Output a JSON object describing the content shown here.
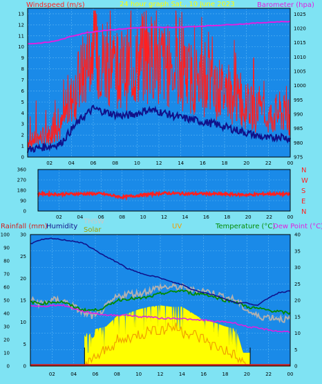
{
  "panel1": {
    "title": "24 hour graph Sat., 10 June 2023",
    "left_label": "Windspeed (m/s)",
    "right_label": "Barometer (hpa)",
    "left_ticks": [
      "0",
      "1",
      "2",
      "3",
      "4",
      "5",
      "6",
      "7",
      "8",
      "9",
      "10",
      "11",
      "12",
      "13"
    ],
    "right_ticks": [
      "975",
      "980",
      "985",
      "990",
      "995",
      "1000",
      "1005",
      "1010",
      "1015",
      "1020",
      "1025"
    ],
    "x_ticks": [
      "02",
      "04",
      "06",
      "08",
      "10",
      "12",
      "14",
      "16",
      "18",
      "20",
      "22",
      "00"
    ]
  },
  "panel2": {
    "left_ticks": [
      "0",
      "90",
      "180",
      "270",
      "360"
    ],
    "right_ticks": [
      "N",
      "W",
      "S",
      "E",
      "N"
    ],
    "x_ticks": [
      "02",
      "04",
      "06",
      "08",
      "10",
      "12",
      "14",
      "16",
      "18",
      "20",
      "22",
      "00"
    ]
  },
  "panel3": {
    "labels": {
      "rainfall": "Rainfall (mm)",
      "humidity": "Humidity",
      "thsw": "THSW",
      "solar": "Solar",
      "uv": "UV",
      "temperature": "Temperature (°C)",
      "dewpoint": "Dew Point (°C)"
    },
    "left_ticks": [
      "0",
      "10",
      "20",
      "30",
      "40",
      "50",
      "60",
      "70",
      "80",
      "90",
      "100"
    ],
    "second_ticks": [
      "0",
      "5",
      "10",
      "15",
      "20",
      "25",
      "30"
    ],
    "right_ticks": [
      "0",
      "5",
      "10",
      "15",
      "20",
      "25",
      "30",
      "35",
      "40"
    ],
    "x_ticks": [
      "02",
      "04",
      "06",
      "08",
      "10",
      "12",
      "14",
      "16",
      "18",
      "20",
      "22",
      "00"
    ]
  },
  "colors": {
    "background": "#7fe3f3",
    "plot_bg": "#1a8ae8",
    "wind_gust": "#ff2020",
    "wind_avg": "#10128a",
    "barometer": "#e020e0",
    "direction": "#ff2020",
    "humidity": "#10128a",
    "temperature": "#008a00",
    "dewpoint": "#e020e0",
    "thsw": "#b0b0b0",
    "solar": "#ffff00",
    "uv": "#f0a000",
    "rain": "#d02020"
  },
  "chart_data": [
    {
      "type": "line",
      "title": "24 hour graph Sat., 10 June 2023",
      "x": [
        "00:00",
        "01:00",
        "02:00",
        "03:00",
        "04:00",
        "05:00",
        "06:00",
        "07:00",
        "08:00",
        "09:00",
        "10:00",
        "11:00",
        "12:00",
        "13:00",
        "14:00",
        "15:00",
        "16:00",
        "17:00",
        "18:00",
        "19:00",
        "20:00",
        "21:00",
        "22:00",
        "23:00",
        "00:00"
      ],
      "series": [
        {
          "name": "Windspeed (m/s)",
          "axis": "left",
          "values": [
            1.2,
            1.5,
            1.8,
            2.2,
            4.5,
            6.5,
            8.0,
            7.5,
            7.0,
            6.8,
            7.2,
            7.8,
            7.5,
            7.0,
            6.5,
            6.2,
            5.8,
            5.5,
            5.0,
            4.5,
            4.0,
            3.5,
            3.0,
            3.5,
            3.0
          ]
        },
        {
          "name": "Barometer (hpa)",
          "axis": "right",
          "values": [
            1014.6,
            1014.8,
            1015.2,
            1016.0,
            1017.2,
            1018.2,
            1018.8,
            1019.3,
            1019.6,
            1019.9,
            1020.2,
            1020.3,
            1020.3,
            1020.3,
            1020.4,
            1020.6,
            1020.8,
            1021.0,
            1021.2,
            1021.4,
            1021.6,
            1021.9,
            1022.1,
            1022.3,
            1022.4
          ]
        }
      ],
      "ylabel": "Windspeed (m/s)",
      "y2label": "Barometer (hpa)",
      "ylim": [
        0,
        13.5
      ],
      "y2lim": [
        975,
        1027
      ],
      "grid": true
    },
    {
      "type": "line",
      "x": [
        "00:00",
        "02:00",
        "04:00",
        "06:00",
        "08:00",
        "10:00",
        "12:00",
        "14:00",
        "16:00",
        "18:00",
        "20:00",
        "22:00",
        "00:00"
      ],
      "series": [
        {
          "values": [
            150,
            145,
            150,
            150,
            120,
            140,
            155,
            150,
            150,
            145,
            140,
            150,
            145
          ]
        }
      ],
      "ylim": [
        0,
        360
      ],
      "yticks": [
        "0",
        "90",
        "180",
        "270",
        "360"
      ],
      "y2ticks": [
        "N",
        "W",
        "S",
        "E",
        "N"
      ],
      "grid": true
    },
    {
      "type": "area",
      "x": [
        "00:00",
        "01:00",
        "02:00",
        "03:00",
        "04:00",
        "05:00",
        "06:00",
        "07:00",
        "08:00",
        "09:00",
        "10:00",
        "11:00",
        "12:00",
        "13:00",
        "14:00",
        "15:00",
        "16:00",
        "17:00",
        "18:00",
        "19:00",
        "20:00",
        "21:00",
        "22:00",
        "23:00",
        "00:00"
      ],
      "series": [
        {
          "name": "Humidity",
          "axis": "left",
          "values": [
            93,
            96,
            97,
            96,
            95,
            93,
            88,
            83,
            79,
            74,
            71,
            69,
            67,
            64,
            62,
            58,
            56,
            54,
            51,
            48,
            48,
            46,
            52,
            56,
            57
          ]
        },
        {
          "name": "Temperature (°C)",
          "axis": "right",
          "values": [
            19.5,
            19,
            19.5,
            19.5,
            18,
            17,
            17,
            18,
            20,
            20.5,
            20.5,
            21,
            22,
            22.5,
            23,
            22,
            22,
            21,
            20,
            19.5,
            18,
            17.5,
            17,
            16.5,
            16
          ]
        },
        {
          "name": "Dew Point (°C)",
          "axis": "right",
          "values": [
            18.5,
            18,
            18.5,
            18.5,
            17.5,
            16.5,
            16,
            15.5,
            15.5,
            15.5,
            15,
            15,
            14.5,
            14.5,
            14.5,
            14,
            14,
            13.5,
            13.5,
            13,
            12,
            11.5,
            11,
            10.5,
            10.5
          ]
        },
        {
          "name": "THSW",
          "axis": "right",
          "values": [
            20,
            19,
            20,
            20,
            18,
            16,
            15,
            18,
            21,
            22,
            22,
            23,
            24,
            24,
            24,
            23,
            23,
            22,
            21,
            20,
            17,
            15,
            15,
            14.5,
            14
          ]
        },
        {
          "name": "Solar",
          "axis": "left",
          "values": [
            0,
            0,
            0,
            0,
            0,
            0,
            28,
            30,
            38,
            40,
            43,
            45,
            46,
            45,
            45,
            40,
            35,
            33,
            30,
            28,
            0,
            0,
            0,
            0,
            0
          ]
        },
        {
          "name": "UV",
          "axis": "second",
          "values": [
            0,
            0,
            0,
            0,
            0,
            0,
            2,
            4,
            6,
            7,
            8,
            9,
            9,
            10,
            9,
            8,
            7,
            5,
            4,
            2,
            0,
            0,
            0,
            0,
            0
          ]
        },
        {
          "name": "Rainfall (mm)",
          "axis": "left",
          "values": [
            0,
            0,
            0,
            0,
            0,
            0,
            0,
            0,
            0,
            0,
            0,
            0,
            0,
            0,
            0,
            0,
            0,
            0,
            0,
            0,
            0,
            0,
            0,
            0,
            0
          ]
        }
      ],
      "ylim": [
        0,
        100
      ],
      "y2lim": [
        0,
        40
      ],
      "grid": true
    }
  ]
}
